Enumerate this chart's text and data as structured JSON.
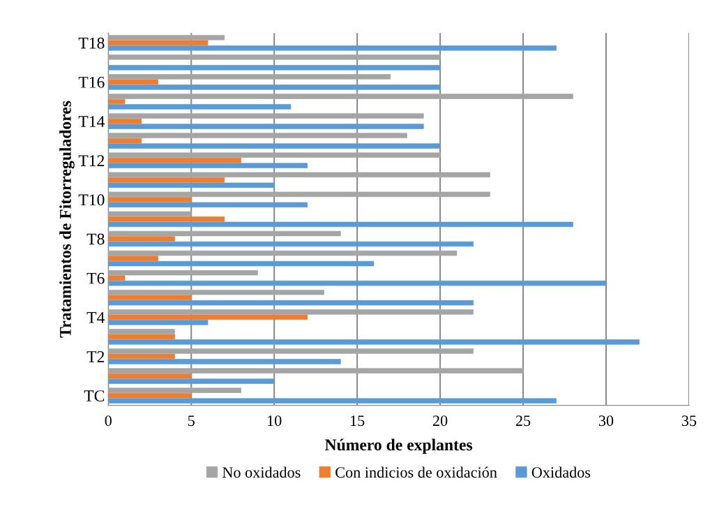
{
  "chart_data": {
    "type": "bar",
    "orientation": "horizontal",
    "xlabel": "Número de explantes",
    "ylabel": "Tratamientos de Fitorreguladores",
    "categories": [
      "T18",
      null,
      "T16",
      null,
      "T14",
      null,
      "T12",
      null,
      "T10",
      null,
      "T8",
      null,
      "T6",
      null,
      "T4",
      null,
      "T2",
      null,
      "TC"
    ],
    "series": [
      {
        "name": "No oxidados",
        "color": "#a5a5a5",
        "values": [
          7,
          20,
          17,
          28,
          19,
          18,
          20,
          23,
          23,
          5,
          14,
          21,
          9,
          13,
          22,
          4,
          22,
          25,
          8
        ]
      },
      {
        "name": "Con indicios de oxidación",
        "color": "#ed7d31",
        "values": [
          6,
          0,
          3,
          1,
          2,
          2,
          8,
          7,
          5,
          7,
          4,
          3,
          1,
          5,
          12,
          4,
          4,
          5,
          5
        ]
      },
      {
        "name": "Oxidados",
        "color": "#5b9bd5",
        "values": [
          27,
          20,
          20,
          11,
          19,
          20,
          12,
          10,
          12,
          28,
          22,
          16,
          30,
          22,
          6,
          32,
          14,
          10,
          27
        ]
      }
    ],
    "xlim": [
      0,
      35
    ],
    "xticks": [
      0,
      5,
      10,
      15,
      20,
      25,
      30,
      35
    ],
    "grid": "x",
    "legend": "bottom"
  }
}
